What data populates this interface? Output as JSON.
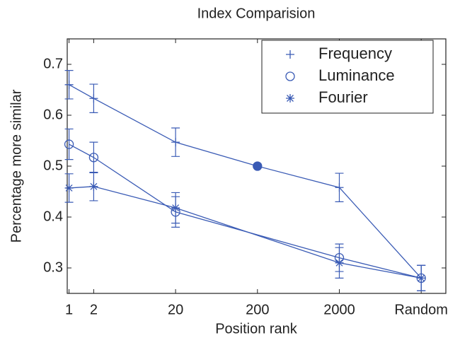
{
  "chart_data": {
    "type": "line",
    "title": "Index Comparision",
    "xlabel": "Position rank",
    "ylabel": "Percentage more similar",
    "xscale": "log",
    "xlim": [
      0.95,
      40000
    ],
    "ylim": [
      0.25,
      0.75
    ],
    "xticks": [
      1,
      2,
      20,
      200,
      2000,
      {
        "value": 20000,
        "label": "Random"
      }
    ],
    "yticks": [
      0.3,
      0.4,
      0.5,
      0.6,
      0.7
    ],
    "legend": "upper right",
    "series": [
      {
        "name": "Frequency",
        "color": "#3a5bb5",
        "marker": "+",
        "x": [
          1,
          2,
          20,
          200,
          2000,
          20000
        ],
        "values": [
          0.66,
          0.633,
          0.547,
          0.5,
          0.458,
          0.28
        ],
        "errors": [
          0.028,
          0.028,
          0.028,
          null,
          0.028,
          0.025
        ],
        "filled_markers": [
          3
        ]
      },
      {
        "name": "Luminance",
        "color": "#3a5bb5",
        "marker": "o",
        "x": [
          1,
          2,
          20,
          2000,
          20000
        ],
        "values": [
          0.543,
          0.517,
          0.41,
          0.32,
          0.28
        ],
        "errors": [
          0.03,
          0.03,
          0.03,
          0.027,
          0.025
        ]
      },
      {
        "name": "Fourier",
        "color": "#3a5bb5",
        "marker": "*",
        "x": [
          1,
          2,
          20,
          2000,
          20000
        ],
        "values": [
          0.457,
          0.46,
          0.418,
          0.31,
          0.28
        ],
        "errors": [
          0.028,
          0.028,
          0.03,
          0.03,
          0.025
        ]
      }
    ]
  }
}
